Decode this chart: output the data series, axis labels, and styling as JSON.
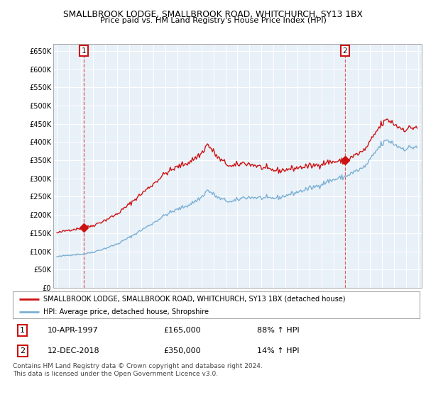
{
  "title": "SMALLBROOK LODGE, SMALLBROOK ROAD, WHITCHURCH, SY13 1BX",
  "subtitle": "Price paid vs. HM Land Registry's House Price Index (HPI)",
  "legend_entry1": "SMALLBROOK LODGE, SMALLBROOK ROAD, WHITCHURCH, SY13 1BX (detached house)",
  "legend_entry2": "HPI: Average price, detached house, Shropshire",
  "transaction1_label": "1",
  "transaction1_date": "10-APR-1997",
  "transaction1_price": "£165,000",
  "transaction1_hpi": "88% ↑ HPI",
  "transaction2_label": "2",
  "transaction2_date": "12-DEC-2018",
  "transaction2_price": "£350,000",
  "transaction2_hpi": "14% ↑ HPI",
  "footer": "Contains HM Land Registry data © Crown copyright and database right 2024.\nThis data is licensed under the Open Government Licence v3.0.",
  "yticks": [
    0,
    50000,
    100000,
    150000,
    200000,
    250000,
    300000,
    350000,
    400000,
    450000,
    500000,
    550000,
    600000,
    650000
  ],
  "hpi_color": "#7ab0d4",
  "price_color": "#cc1111",
  "vline_color": "#dd4444",
  "chart_bg": "#e8f0f8",
  "grid_color": "#ffffff",
  "background_color": "#ffffff"
}
